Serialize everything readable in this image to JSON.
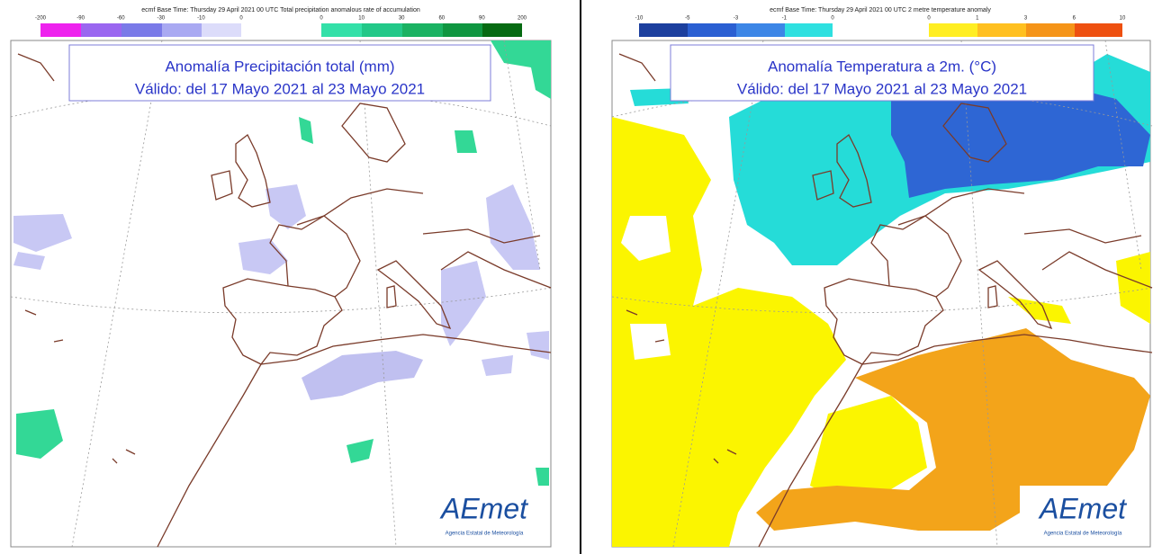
{
  "left": {
    "header": "ecmf  Base Time: Thursday 29 April 2021 00 UTC Total precipitation anomalous rate of accumulation",
    "legend_neg": [
      -200,
      -90,
      -60,
      -30,
      -10,
      0
    ],
    "legend_pos": [
      0,
      10,
      30,
      60,
      90,
      200
    ],
    "title": "Anomalía Precipitación total (mm)",
    "subtitle": "Válido: del 17 Mayo 2021 al 23 Mayo 2021",
    "logo": "AEmet",
    "logo_caption": "Agencia Estatal de Meteorología"
  },
  "right": {
    "header": "ecmf  Base Time: Thursday 29 April 2021 00 UTC 2 metre temperature anomaly",
    "legend_neg": [
      -10,
      -5,
      -3,
      -1,
      0
    ],
    "legend_pos": [
      0,
      1,
      3,
      6,
      10
    ],
    "title": "Anomalía Temperatura a 2m. (°C)",
    "subtitle": "Válido: del 17 Mayo 2021 al 23 Mayo 2021",
    "logo": "AEmet",
    "logo_caption": "Agencia Estatal de Meteorología"
  }
}
